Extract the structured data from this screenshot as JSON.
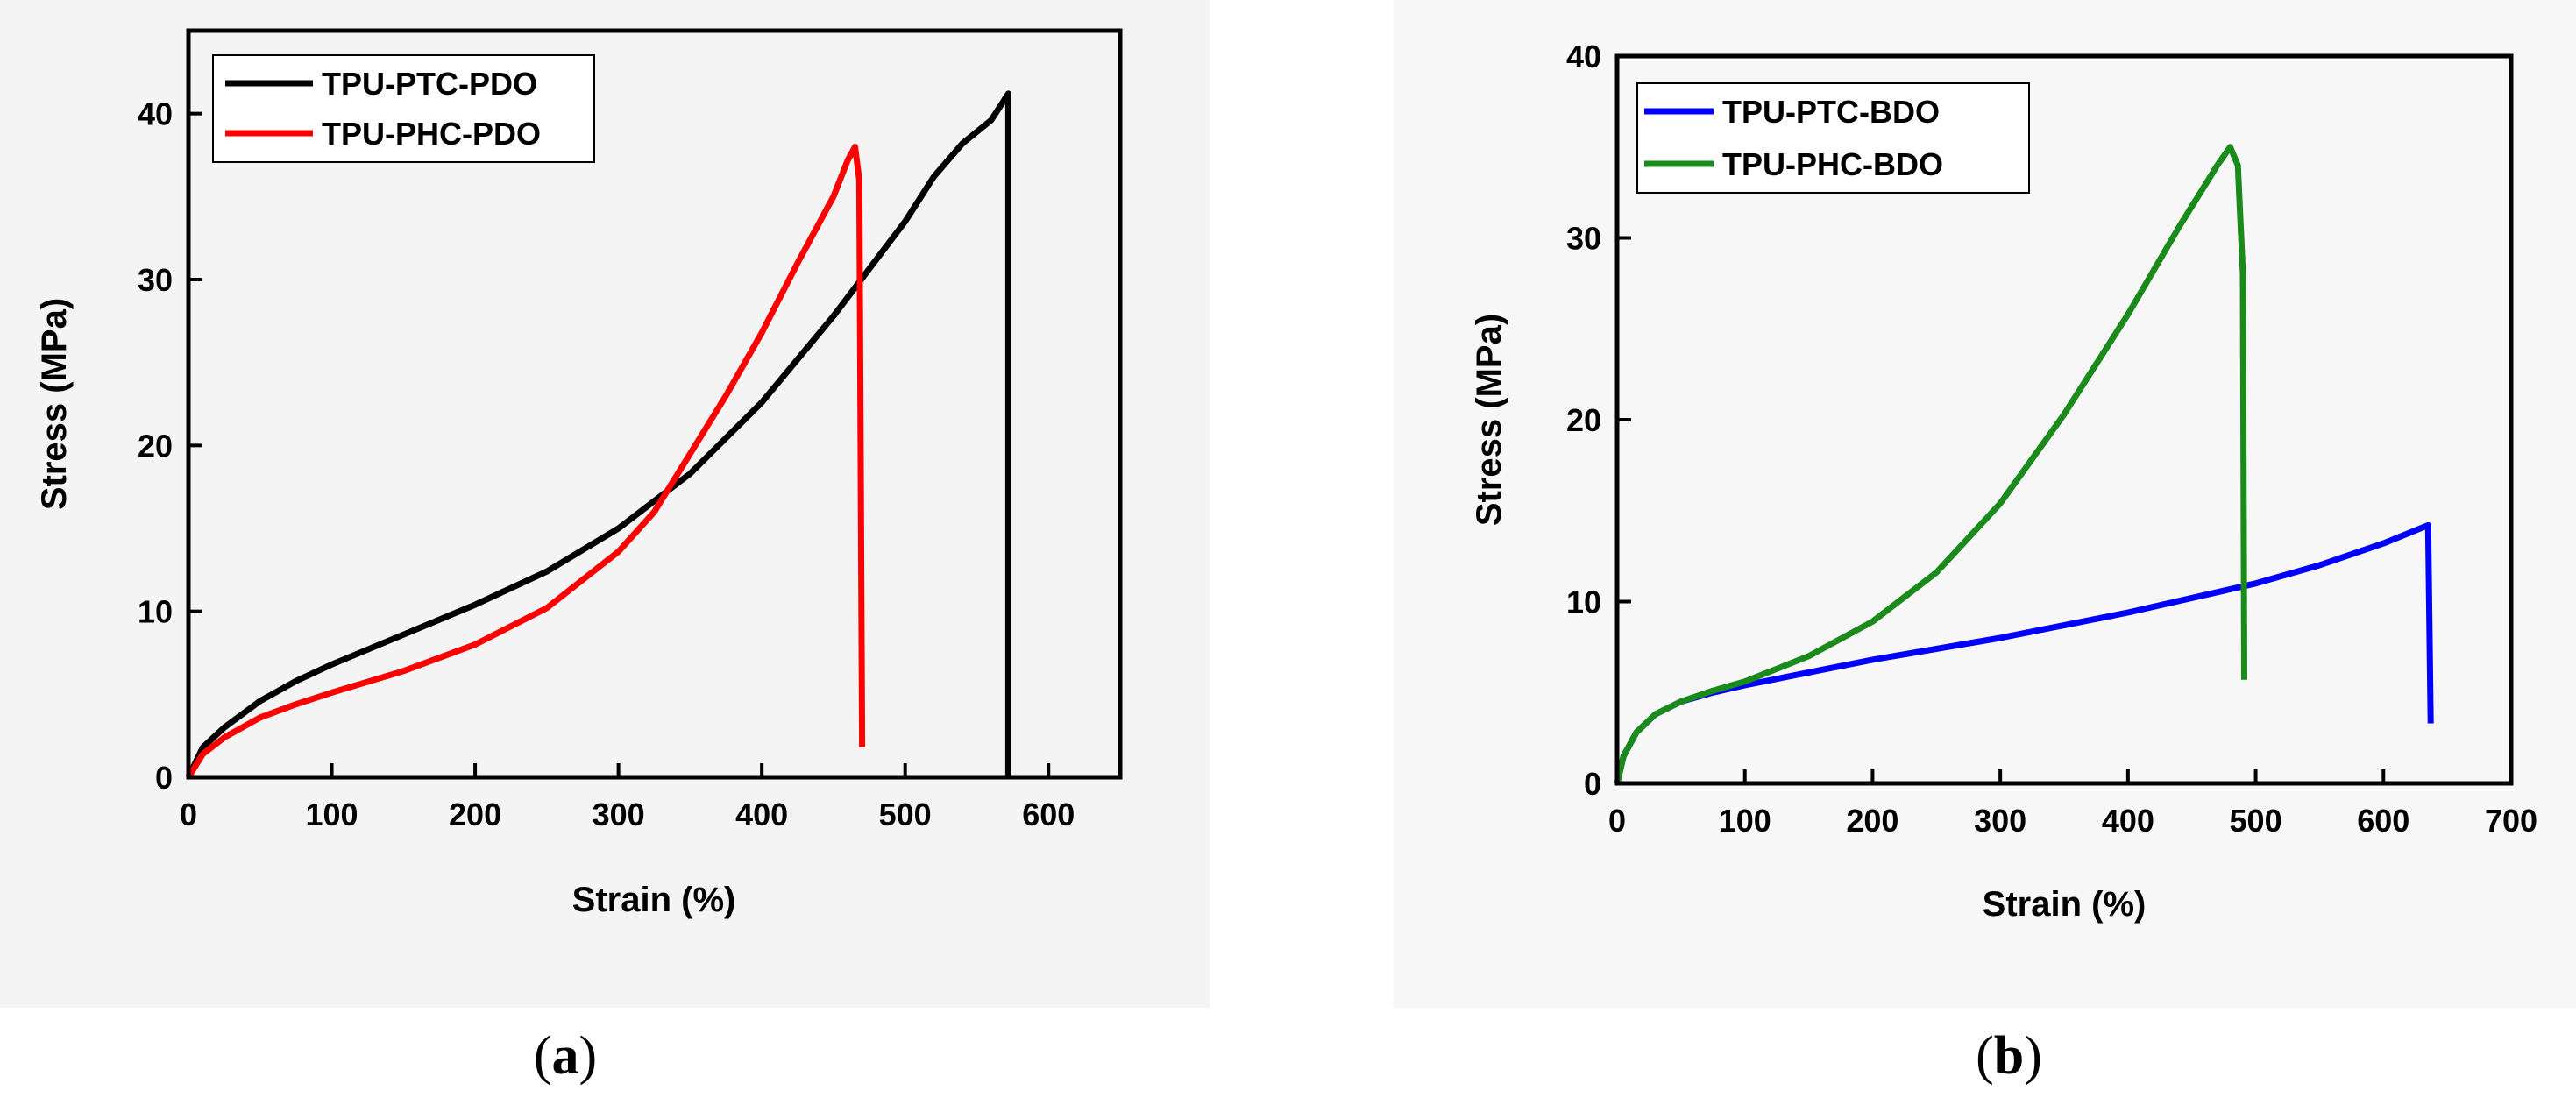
{
  "chart_data": [
    {
      "type": "line",
      "id": "a",
      "caption_open": "(",
      "caption_letter": "a",
      "caption_close": ")",
      "xlabel": "Strain (%)",
      "ylabel": "Stress (MPa)",
      "xlim": [
        0,
        650
      ],
      "ylim": [
        0,
        45
      ],
      "xticks": [
        0,
        100,
        200,
        300,
        400,
        500,
        600
      ],
      "yticks": [
        0,
        10,
        20,
        30,
        40
      ],
      "legend_position": "top-left",
      "series": [
        {
          "name": "TPU-PTC-PDO",
          "color": "#000000",
          "points": [
            [
              0,
              0
            ],
            [
              10,
              1.8
            ],
            [
              25,
              3.0
            ],
            [
              50,
              4.6
            ],
            [
              75,
              5.8
            ],
            [
              100,
              6.8
            ],
            [
              150,
              8.6
            ],
            [
              200,
              10.4
            ],
            [
              250,
              12.4
            ],
            [
              300,
              15.0
            ],
            [
              350,
              18.3
            ],
            [
              400,
              22.6
            ],
            [
              450,
              27.8
            ],
            [
              500,
              33.5
            ],
            [
              520,
              36.2
            ],
            [
              540,
              38.2
            ],
            [
              560,
              39.6
            ],
            [
              572,
              41.2
            ],
            [
              572,
              0
            ]
          ]
        },
        {
          "name": "TPU-PHC-PDO",
          "color": "#ff0000",
          "points": [
            [
              0,
              0
            ],
            [
              10,
              1.4
            ],
            [
              25,
              2.4
            ],
            [
              50,
              3.6
            ],
            [
              75,
              4.4
            ],
            [
              100,
              5.1
            ],
            [
              150,
              6.4
            ],
            [
              200,
              8.0
            ],
            [
              250,
              10.2
            ],
            [
              300,
              13.6
            ],
            [
              325,
              16.0
            ],
            [
              350,
              19.5
            ],
            [
              375,
              23.0
            ],
            [
              400,
              26.8
            ],
            [
              425,
              31.0
            ],
            [
              450,
              35.0
            ],
            [
              460,
              37.2
            ],
            [
              465,
              38.0
            ],
            [
              468,
              36.0
            ],
            [
              470,
              1.8
            ]
          ]
        }
      ]
    },
    {
      "type": "line",
      "id": "b",
      "caption_open": "(",
      "caption_letter": "b",
      "caption_close": ")",
      "xlabel": "Strain (%)",
      "ylabel": "Stress (MPa)",
      "xlim": [
        0,
        700
      ],
      "ylim": [
        0,
        40
      ],
      "xticks": [
        0,
        100,
        200,
        300,
        400,
        500,
        600,
        700
      ],
      "yticks": [
        0,
        10,
        20,
        30,
        40
      ],
      "legend_position": "top-left",
      "series": [
        {
          "name": "TPU-PTC-BDO",
          "color": "#0000ff",
          "points": [
            [
              0,
              0
            ],
            [
              5,
              1.5
            ],
            [
              15,
              2.8
            ],
            [
              30,
              3.8
            ],
            [
              50,
              4.5
            ],
            [
              75,
              5.0
            ],
            [
              100,
              5.4
            ],
            [
              150,
              6.1
            ],
            [
              200,
              6.8
            ],
            [
              300,
              8.0
            ],
            [
              400,
              9.4
            ],
            [
              500,
              11.0
            ],
            [
              550,
              12.0
            ],
            [
              600,
              13.2
            ],
            [
              635,
              14.2
            ],
            [
              637,
              3.3
            ]
          ]
        },
        {
          "name": "TPU-PHC-BDO",
          "color": "#1a8a1a",
          "points": [
            [
              0,
              0
            ],
            [
              5,
              1.5
            ],
            [
              15,
              2.8
            ],
            [
              30,
              3.8
            ],
            [
              50,
              4.5
            ],
            [
              75,
              5.1
            ],
            [
              100,
              5.6
            ],
            [
              150,
              7.0
            ],
            [
              200,
              8.9
            ],
            [
              250,
              11.6
            ],
            [
              300,
              15.4
            ],
            [
              350,
              20.3
            ],
            [
              400,
              25.8
            ],
            [
              440,
              30.6
            ],
            [
              470,
              34.0
            ],
            [
              480,
              35.0
            ],
            [
              486,
              34.0
            ],
            [
              490,
              28.0
            ],
            [
              491,
              5.7
            ]
          ]
        }
      ]
    }
  ]
}
